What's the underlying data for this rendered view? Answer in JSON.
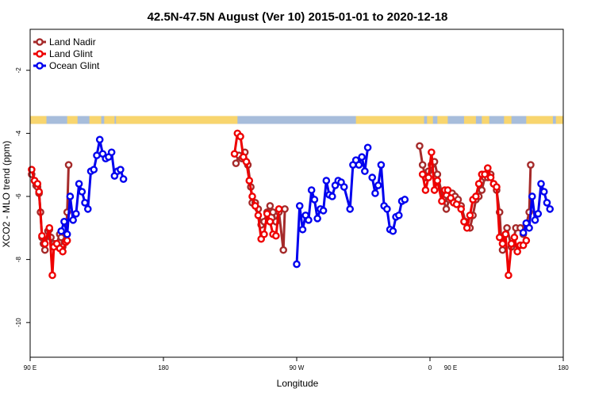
{
  "chart_data": {
    "type": "line",
    "title": "42.5N-47.5N August (Ver 10)   2015-01-01 to 2020-12-18",
    "xlabel": "Longitude",
    "ylabel": "XCO2 - MLO trend (ppm)",
    "xlim": [
      90,
      450
    ],
    "ylim": [
      -11.1,
      -0.7
    ],
    "x_ticks": [
      {
        "value": 90,
        "label": "90 E"
      },
      {
        "value": 180,
        "label": "180"
      },
      {
        "value": 270,
        "label": "90 W"
      },
      {
        "value": 360,
        "label": "0"
      },
      {
        "value": 450,
        "label": "180"
      }
    ],
    "extra_x_ticks": [
      {
        "value": 450,
        "label": "90 E"
      }
    ],
    "y_ticks": [
      -10,
      -8,
      -6,
      -4,
      -2
    ],
    "legend_position": "top-left",
    "grid": false,
    "land_mask": {
      "colors": {
        "land": "#F8D56E",
        "ocean": "#A7BDDB"
      },
      "y_range": [
        -3.7,
        -3.45
      ],
      "land_segments": [
        [
          90,
          101
        ],
        [
          115,
          122
        ],
        [
          130,
          138
        ],
        [
          140,
          147
        ],
        [
          148,
          230
        ],
        [
          310,
          356
        ],
        [
          358,
          362
        ],
        [
          365,
          372
        ],
        [
          383,
          391
        ],
        [
          395,
          400
        ],
        [
          410,
          415
        ],
        [
          425,
          443
        ],
        [
          445,
          450
        ]
      ]
    },
    "series": [
      {
        "name": "Land Nadir",
        "color": "#A52A2A",
        "segments": [
          [
            [
              91,
              -5.3
            ],
            [
              93,
              -5.5
            ],
            [
              94,
              -5.65
            ],
            [
              95,
              -5.7
            ],
            [
              96,
              -5.9
            ],
            [
              97,
              -6.5
            ],
            [
              98,
              -7.3
            ],
            [
              99,
              -7.5
            ],
            [
              100,
              -7.7
            ],
            [
              102,
              -7.1
            ],
            [
              103,
              -7.05
            ],
            [
              104,
              -7.3
            ],
            [
              106,
              -7.5
            ],
            [
              107,
              -7.55
            ],
            [
              108,
              -7.5
            ],
            [
              110,
              -7.2
            ],
            [
              111,
              -7.3
            ],
            [
              112,
              -7.6
            ],
            [
              114,
              -7.4
            ],
            [
              115,
              -6.5
            ],
            [
              116,
              -5.0
            ]
          ],
          [
            [
              229,
              -4.95
            ],
            [
              231,
              -4.7
            ],
            [
              233,
              -4.8
            ],
            [
              235,
              -4.6
            ],
            [
              237,
              -5.0
            ],
            [
              239,
              -5.7
            ],
            [
              240,
              -6.2
            ],
            [
              242,
              -6.2
            ],
            [
              244,
              -6.4
            ],
            [
              246,
              -6.9
            ],
            [
              248,
              -6.8
            ],
            [
              250,
              -6.5
            ],
            [
              252,
              -6.3
            ],
            [
              254,
              -6.5
            ],
            [
              256,
              -6.8
            ],
            [
              258,
              -6.5
            ],
            [
              261,
              -7.7
            ],
            [
              262,
              -6.4
            ]
          ],
          [
            [
              353,
              -4.4
            ],
            [
              355,
              -5.0
            ],
            [
              357,
              -5.4
            ],
            [
              359,
              -5.2
            ],
            [
              361,
              -5.0
            ],
            [
              363,
              -4.9
            ],
            [
              365,
              -5.3
            ],
            [
              369,
              -6.1
            ],
            [
              371,
              -6.4
            ],
            [
              373,
              -6.1
            ],
            [
              375,
              -5.9
            ],
            [
              377,
              -6.0
            ],
            [
              379,
              -6.1
            ],
            [
              381,
              -6.3
            ],
            [
              384,
              -6.8
            ],
            [
              387,
              -7.0
            ],
            [
              389,
              -6.6
            ],
            [
              391,
              -6.1
            ],
            [
              393,
              -6.0
            ],
            [
              395,
              -5.8
            ],
            [
              397,
              -5.4
            ],
            [
              399,
              -5.4
            ],
            [
              401,
              -5.3
            ],
            [
              403,
              -5.6
            ],
            [
              405,
              -5.8
            ],
            [
              407,
              -6.5
            ],
            [
              408,
              -7.3
            ],
            [
              409,
              -7.7
            ],
            [
              412,
              -7.0
            ],
            [
              415,
              -7.6
            ],
            [
              416,
              -7.5
            ],
            [
              418,
              -7.0
            ],
            [
              421,
              -7.0
            ],
            [
              423,
              -7.2
            ],
            [
              425,
              -6.9
            ],
            [
              427,
              -6.5
            ],
            [
              428,
              -5.0
            ]
          ]
        ]
      },
      {
        "name": "Land Glint",
        "color": "#EE0000",
        "segments": [
          [
            [
              91,
              -5.15
            ],
            [
              93,
              -5.5
            ],
            [
              95,
              -5.6
            ],
            [
              96,
              -5.85
            ],
            [
              98,
              -7.25
            ],
            [
              100,
              -7.5
            ],
            [
              103,
              -7.0
            ],
            [
              105,
              -8.5
            ],
            [
              106,
              -7.6
            ],
            [
              108,
              -7.5
            ],
            [
              110,
              -7.65
            ],
            [
              112,
              -7.75
            ],
            [
              114,
              -7.45
            ],
            [
              115,
              -7.4
            ]
          ],
          [
            [
              228,
              -4.65
            ],
            [
              230,
              -4.0
            ],
            [
              232,
              -4.1
            ],
            [
              234,
              -4.75
            ],
            [
              236,
              -4.9
            ],
            [
              238,
              -5.5
            ],
            [
              240,
              -6.0
            ],
            [
              242,
              -6.3
            ],
            [
              244,
              -6.6
            ],
            [
              246,
              -7.35
            ],
            [
              248,
              -7.2
            ],
            [
              250,
              -6.55
            ],
            [
              252,
              -6.8
            ],
            [
              254,
              -7.2
            ],
            [
              256,
              -7.25
            ],
            [
              258,
              -6.4
            ]
          ],
          [
            [
              355,
              -5.3
            ],
            [
              357,
              -5.8
            ],
            [
              359,
              -5.4
            ],
            [
              361,
              -4.6
            ],
            [
              363,
              -5.8
            ],
            [
              365,
              -5.5
            ],
            [
              368,
              -6.15
            ],
            [
              370,
              -5.8
            ],
            [
              372,
              -5.8
            ],
            [
              374,
              -6.05
            ],
            [
              376,
              -6.2
            ],
            [
              378,
              -6.25
            ],
            [
              381,
              -6.4
            ],
            [
              383,
              -6.8
            ],
            [
              385,
              -7.0
            ],
            [
              387,
              -6.6
            ],
            [
              389,
              -6.1
            ],
            [
              391,
              -6.0
            ],
            [
              393,
              -5.6
            ],
            [
              395,
              -5.3
            ],
            [
              397,
              -5.3
            ],
            [
              399,
              -5.1
            ],
            [
              401,
              -5.4
            ],
            [
              403,
              -5.6
            ],
            [
              405,
              -5.7
            ],
            [
              407,
              -7.3
            ],
            [
              409,
              -7.5
            ],
            [
              411,
              -7.2
            ],
            [
              413,
              -8.5
            ],
            [
              415,
              -7.5
            ],
            [
              417,
              -7.3
            ],
            [
              419,
              -7.75
            ],
            [
              421,
              -7.55
            ],
            [
              423,
              -7.55
            ],
            [
              425,
              -7.4
            ]
          ]
        ]
      },
      {
        "name": "Ocean Glint",
        "color": "#0000EE",
        "segments": [
          [
            [
              111,
              -7.1
            ],
            [
              113,
              -6.8
            ],
            [
              115,
              -7.2
            ],
            [
              117,
              -6.0
            ],
            [
              119,
              -6.75
            ],
            [
              121,
              -6.55
            ],
            [
              123,
              -5.6
            ],
            [
              125,
              -5.85
            ],
            [
              127,
              -6.2
            ],
            [
              129,
              -6.4
            ],
            [
              131,
              -5.2
            ],
            [
              133,
              -5.15
            ],
            [
              135,
              -4.7
            ],
            [
              137,
              -4.2
            ],
            [
              139,
              -4.65
            ],
            [
              141,
              -4.8
            ],
            [
              143,
              -4.75
            ],
            [
              145,
              -4.6
            ],
            [
              147,
              -5.35
            ],
            [
              149,
              -5.2
            ],
            [
              151,
              -5.15
            ],
            [
              153,
              -5.45
            ]
          ],
          [
            [
              270,
              -8.15
            ],
            [
              272,
              -6.3
            ],
            [
              274,
              -7.05
            ],
            [
              276,
              -6.6
            ],
            [
              278,
              -6.75
            ],
            [
              280,
              -5.8
            ],
            [
              282,
              -6.1
            ],
            [
              284,
              -6.7
            ],
            [
              286,
              -6.4
            ],
            [
              288,
              -6.45
            ],
            [
              290,
              -5.5
            ],
            [
              292,
              -5.95
            ],
            [
              294,
              -6.0
            ],
            [
              296,
              -5.65
            ],
            [
              298,
              -5.5
            ],
            [
              300,
              -5.55
            ],
            [
              302,
              -5.7
            ],
            [
              306,
              -6.4
            ],
            [
              308,
              -5.0
            ],
            [
              310,
              -4.85
            ],
            [
              312,
              -5.0
            ],
            [
              314,
              -4.75
            ],
            [
              316,
              -5.2
            ],
            [
              318,
              -4.45
            ]
          ],
          [
            [
              321,
              -5.4
            ],
            [
              323,
              -5.9
            ],
            [
              325,
              -5.65
            ],
            [
              327,
              -5.0
            ],
            [
              329,
              -6.3
            ],
            [
              331,
              -6.4
            ],
            [
              333,
              -7.05
            ],
            [
              335,
              -7.1
            ],
            [
              337,
              -6.65
            ],
            [
              339,
              -6.6
            ],
            [
              341,
              -6.15
            ],
            [
              343,
              -6.1
            ]
          ],
          [
            [
              423,
              -7.15
            ],
            [
              425,
              -6.85
            ],
            [
              427,
              -7.0
            ],
            [
              429,
              -6.0
            ],
            [
              431,
              -6.75
            ],
            [
              433,
              -6.55
            ],
            [
              435,
              -5.6
            ],
            [
              437,
              -5.85
            ],
            [
              439,
              -6.2
            ],
            [
              441,
              -6.4
            ]
          ]
        ]
      }
    ]
  }
}
